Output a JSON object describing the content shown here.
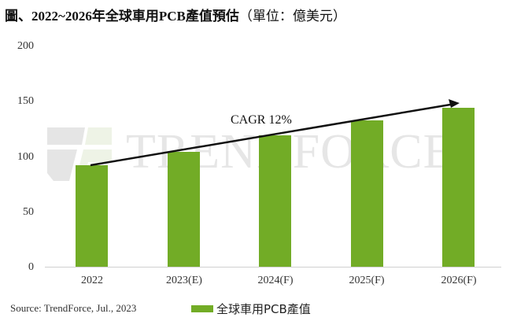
{
  "title": {
    "main": "圖、2022~2026年全球車用PCB產值預估",
    "unit": "（單位：億美元）"
  },
  "watermark": "TRENDFORCE",
  "annotation": "CAGR 12%",
  "source": "Source: TrendForce, Jul., 2023",
  "legend": {
    "label": "全球車用PCB產值",
    "color": "#72ac26"
  },
  "y_ticks": [
    "200",
    "150",
    "100",
    "50",
    "0"
  ],
  "x_ticks": [
    "2022",
    "2023(E)",
    "2024(F)",
    "2025(F)",
    "2026(F)"
  ],
  "chart_data": {
    "type": "bar",
    "title": "2022~2026年全球車用PCB產值預估（單位：億美元）",
    "categories": [
      "2022",
      "2023(E)",
      "2024(F)",
      "2025(F)",
      "2026(F)"
    ],
    "series": [
      {
        "name": "全球車用PCB產值",
        "values": [
          92.5,
          104.5,
          119.5,
          133,
          144.5
        ],
        "color": "#72ac26"
      }
    ],
    "xlabel": "",
    "ylabel": "",
    "ylim": [
      0,
      200
    ],
    "yticks": [
      0,
      50,
      100,
      150,
      200
    ],
    "grid": false,
    "legend_position": "bottom",
    "annotations": [
      {
        "text": "CAGR 12%",
        "type": "trend-arrow",
        "from": "2022",
        "to": "2026(F)"
      }
    ],
    "source": "Source: TrendForce, Jul., 2023"
  }
}
